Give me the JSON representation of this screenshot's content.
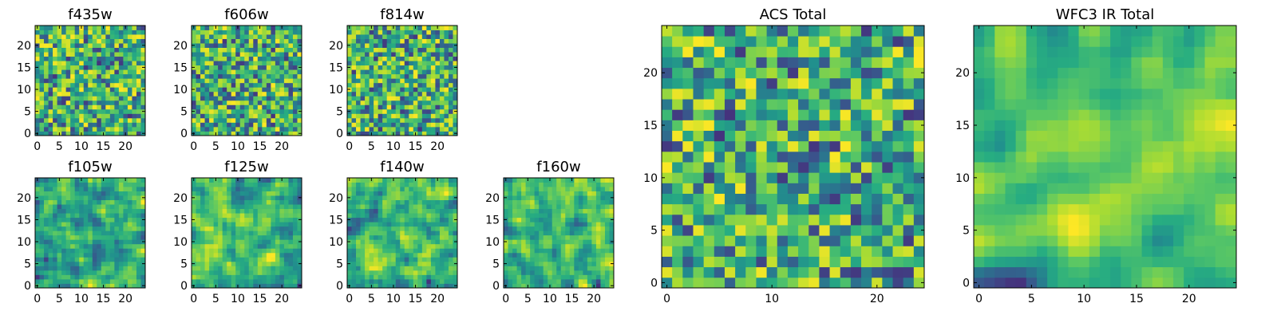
{
  "chart_data": [
    {
      "type": "heatmap",
      "title": "f435w",
      "size": 25,
      "seed": 11,
      "smooth": 0,
      "xticks": [
        0,
        5,
        10,
        15,
        20
      ],
      "yticks": [
        0,
        5,
        10,
        15,
        20
      ],
      "colormap": "viridis"
    },
    {
      "type": "heatmap",
      "title": "f606w",
      "size": 25,
      "seed": 23,
      "smooth": 0,
      "xticks": [
        0,
        5,
        10,
        15,
        20
      ],
      "yticks": [
        0,
        5,
        10,
        15,
        20
      ],
      "colormap": "viridis"
    },
    {
      "type": "heatmap",
      "title": "f814w",
      "size": 25,
      "seed": 37,
      "smooth": 0,
      "xticks": [
        0,
        5,
        10,
        15,
        20
      ],
      "yticks": [
        0,
        5,
        10,
        15,
        20
      ],
      "colormap": "viridis"
    },
    {
      "type": "heatmap",
      "title": "f105w",
      "size": 25,
      "seed": 41,
      "smooth": 1,
      "xticks": [
        0,
        5,
        10,
        15,
        20
      ],
      "yticks": [
        0,
        5,
        10,
        15,
        20
      ],
      "colormap": "viridis"
    },
    {
      "type": "heatmap",
      "title": "f125w",
      "size": 25,
      "seed": 53,
      "smooth": 1,
      "xticks": [
        0,
        5,
        10,
        15,
        20
      ],
      "yticks": [
        0,
        5,
        10,
        15,
        20
      ],
      "colormap": "viridis"
    },
    {
      "type": "heatmap",
      "title": "f140w",
      "size": 25,
      "seed": 67,
      "smooth": 1,
      "xticks": [
        0,
        5,
        10,
        15,
        20
      ],
      "yticks": [
        0,
        5,
        10,
        15,
        20
      ],
      "colormap": "viridis"
    },
    {
      "type": "heatmap",
      "title": "f160w",
      "size": 25,
      "seed": 79,
      "smooth": 1,
      "xticks": [
        0,
        5,
        10,
        15,
        20
      ],
      "yticks": [
        0,
        5,
        10,
        15,
        20
      ],
      "colormap": "viridis"
    },
    {
      "type": "heatmap",
      "title": "ACS Total",
      "size": 25,
      "seed": 83,
      "smooth": 0,
      "xticks": [
        0,
        10,
        20
      ],
      "yticks": [
        0,
        5,
        10,
        15,
        20
      ],
      "colormap": "viridis"
    },
    {
      "type": "heatmap",
      "title": "WFC3 IR Total",
      "size": 25,
      "seed": 97,
      "smooth": 2,
      "xticks": [
        0,
        5,
        10,
        15,
        20
      ],
      "yticks": [
        0,
        5,
        10,
        15,
        20
      ],
      "colormap": "viridis"
    }
  ]
}
